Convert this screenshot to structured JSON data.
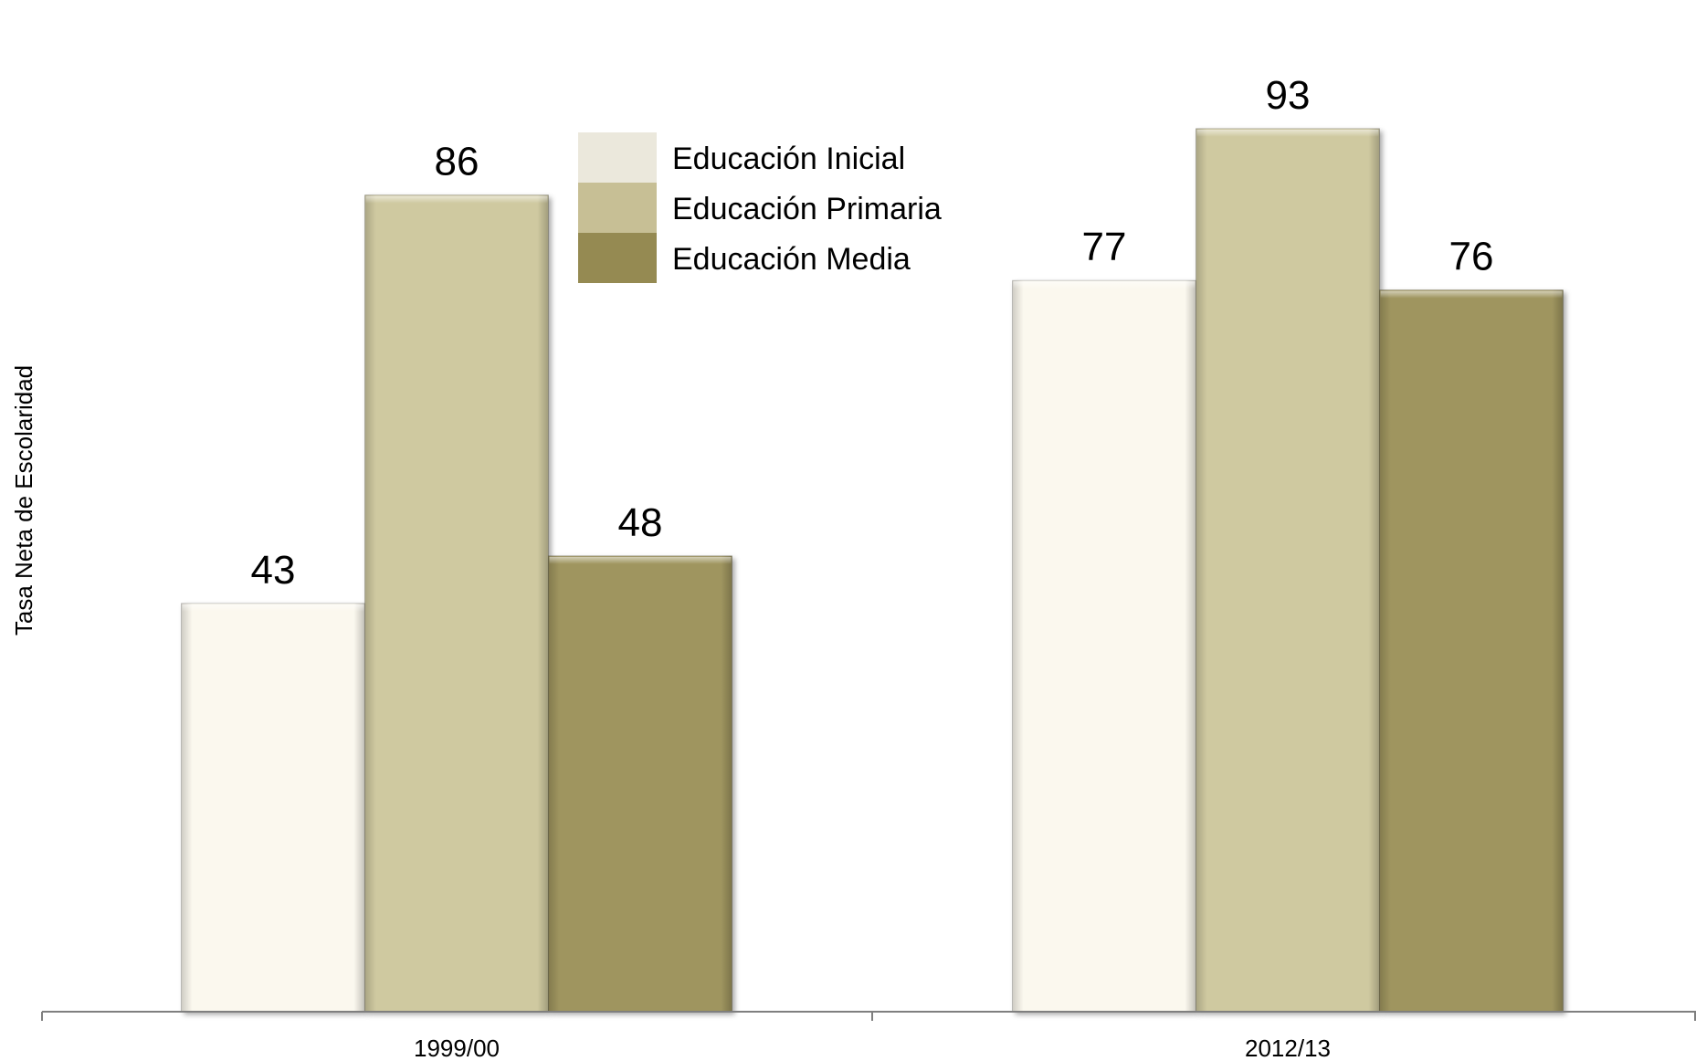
{
  "chart_data": {
    "type": "bar",
    "categories": [
      "1999/00",
      "2012/13"
    ],
    "series": [
      {
        "name": "Educación Inicial",
        "values": [
          43,
          77
        ],
        "color": "#fbf8ee"
      },
      {
        "name": "Educación Primaria",
        "values": [
          86,
          93
        ],
        "color": "#cfc9a0"
      },
      {
        "name": "Educación Media",
        "values": [
          48,
          76
        ],
        "color": "#9f955e"
      }
    ],
    "legend_colors": [
      "#ebe8dc",
      "#c7bf95",
      "#958a52"
    ],
    "title": "",
    "xlabel": "",
    "ylabel": "Tasa Neta de Escolaridad",
    "ylim": [
      0,
      100
    ],
    "grid": false,
    "legend_position": "top-center"
  }
}
